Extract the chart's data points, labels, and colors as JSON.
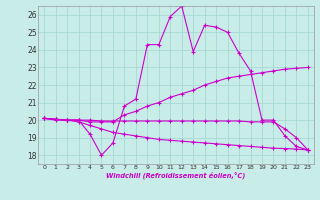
{
  "xlabel": "Windchill (Refroidissement éolien,°C)",
  "xlim": [
    -0.5,
    23.5
  ],
  "ylim": [
    17.5,
    26.5
  ],
  "xticks": [
    0,
    1,
    2,
    3,
    4,
    5,
    6,
    7,
    8,
    9,
    10,
    11,
    12,
    13,
    14,
    15,
    16,
    17,
    18,
    19,
    20,
    21,
    22,
    23
  ],
  "yticks": [
    18,
    19,
    20,
    21,
    22,
    23,
    24,
    25,
    26
  ],
  "bg_color": "#c8ece8",
  "grid_color": "#a8d8d4",
  "line_color": "#cc00cc",
  "line_width": 0.8,
  "marker": "+",
  "marker_size": 3,
  "lines": [
    {
      "x": [
        0,
        1,
        2,
        3,
        4,
        5,
        6,
        7,
        8,
        9,
        10,
        11,
        12,
        13,
        14,
        15,
        16,
        17,
        18,
        19,
        20,
        21,
        22,
        23
      ],
      "y": [
        20.1,
        20.0,
        20.0,
        20.0,
        19.2,
        18.0,
        18.7,
        20.8,
        21.2,
        24.3,
        24.3,
        25.9,
        26.5,
        23.9,
        25.4,
        25.3,
        25.0,
        23.8,
        22.8,
        20.0,
        20.0,
        19.1,
        18.5,
        18.3
      ]
    },
    {
      "x": [
        0,
        1,
        2,
        3,
        4,
        5,
        6,
        7,
        8,
        9,
        10,
        11,
        12,
        13,
        14,
        15,
        16,
        17,
        18,
        19,
        20,
        21,
        22,
        23
      ],
      "y": [
        20.1,
        20.05,
        20.0,
        20.0,
        19.9,
        19.9,
        19.9,
        20.3,
        20.5,
        20.8,
        21.0,
        21.3,
        21.5,
        21.7,
        22.0,
        22.2,
        22.4,
        22.5,
        22.6,
        22.7,
        22.8,
        22.9,
        22.95,
        23.0
      ]
    },
    {
      "x": [
        0,
        1,
        2,
        3,
        4,
        5,
        6,
        7,
        8,
        9,
        10,
        11,
        12,
        13,
        14,
        15,
        16,
        17,
        18,
        19,
        20,
        21,
        22,
        23
      ],
      "y": [
        20.1,
        20.05,
        20.0,
        19.9,
        19.7,
        19.5,
        19.3,
        19.2,
        19.1,
        19.0,
        18.9,
        18.85,
        18.8,
        18.75,
        18.7,
        18.65,
        18.6,
        18.55,
        18.5,
        18.45,
        18.4,
        18.38,
        18.35,
        18.3
      ]
    },
    {
      "x": [
        0,
        1,
        2,
        3,
        4,
        5,
        6,
        7,
        8,
        9,
        10,
        11,
        12,
        13,
        14,
        15,
        16,
        17,
        18,
        19,
        20,
        21,
        22,
        23
      ],
      "y": [
        20.1,
        20.05,
        20.0,
        20.0,
        20.0,
        19.95,
        19.95,
        19.95,
        19.95,
        19.95,
        19.95,
        19.95,
        19.95,
        19.95,
        19.95,
        19.95,
        19.95,
        19.95,
        19.9,
        19.9,
        19.9,
        19.5,
        19.0,
        18.3
      ]
    }
  ]
}
